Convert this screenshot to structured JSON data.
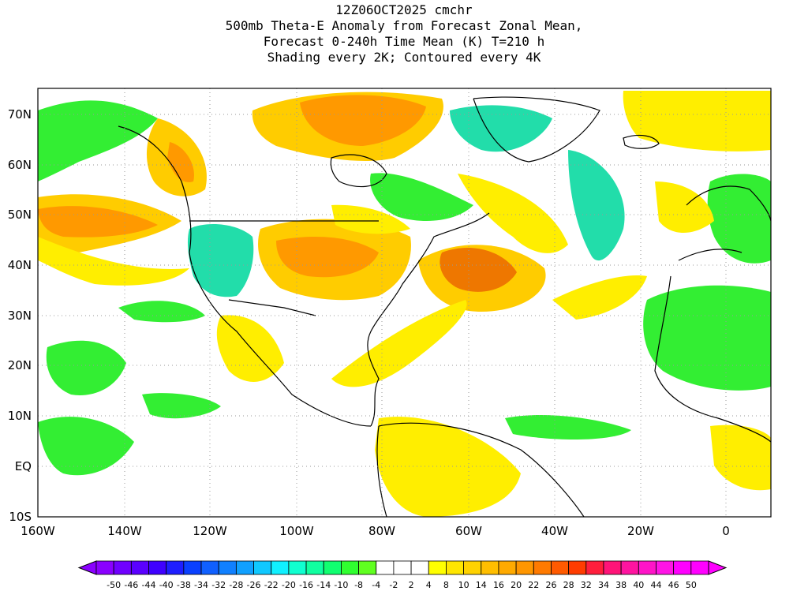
{
  "title": {
    "line1": "12Z06OCT2025 cmchr",
    "line2": "500mb Theta-E Anomaly from Forecast Zonal Mean,",
    "line3": "Forecast 0-240h Time Mean (K) T=210 h",
    "line4": "Shading every 2K; Contoured every 4K"
  },
  "axes": {
    "lon_labels": [
      "160W",
      "140W",
      "120W",
      "100W",
      "80W",
      "60W",
      "40W",
      "20W",
      "0"
    ],
    "lat_labels": [
      "70N",
      "60N",
      "50N",
      "40N",
      "30N",
      "20N",
      "10N",
      "EQ",
      "10S"
    ]
  },
  "colorbar": {
    "labels": [
      "-50",
      "-46",
      "-44",
      "-40",
      "-38",
      "-34",
      "-32",
      "-28",
      "-26",
      "-22",
      "-20",
      "-16",
      "-14",
      "-10",
      "-8",
      "-4",
      "-2",
      "2",
      "4",
      "8",
      "10",
      "14",
      "16",
      "20",
      "22",
      "26",
      "28",
      "32",
      "34",
      "38",
      "40",
      "44",
      "46",
      "50"
    ],
    "colors": [
      "#8a00ff",
      "#7000ff",
      "#5a00ff",
      "#3f00ff",
      "#1e1eff",
      "#0a40ff",
      "#1060ff",
      "#1080ff",
      "#10a0ff",
      "#10c8ff",
      "#10f0ff",
      "#10ffd0",
      "#10ffa0",
      "#10ff70",
      "#30ff30",
      "#60ff20",
      "#ffffff",
      "#ffffff",
      "#ffffff",
      "#ffff00",
      "#ffe600",
      "#ffd200",
      "#ffbe00",
      "#ffaa00",
      "#ff9600",
      "#ff7a00",
      "#ff5a00",
      "#ff3c00",
      "#ff1e3c",
      "#ff1478",
      "#ff14a0",
      "#ff14c8",
      "#ff14e6",
      "#ff00ff",
      "#ff00ff"
    ]
  },
  "colors": {
    "green": "#33ee33",
    "teal": "#22ddaa",
    "yellow": "#ffee00",
    "gold": "#ffcc00",
    "orange": "#ff9900",
    "dark_orange": "#ee7700"
  }
}
